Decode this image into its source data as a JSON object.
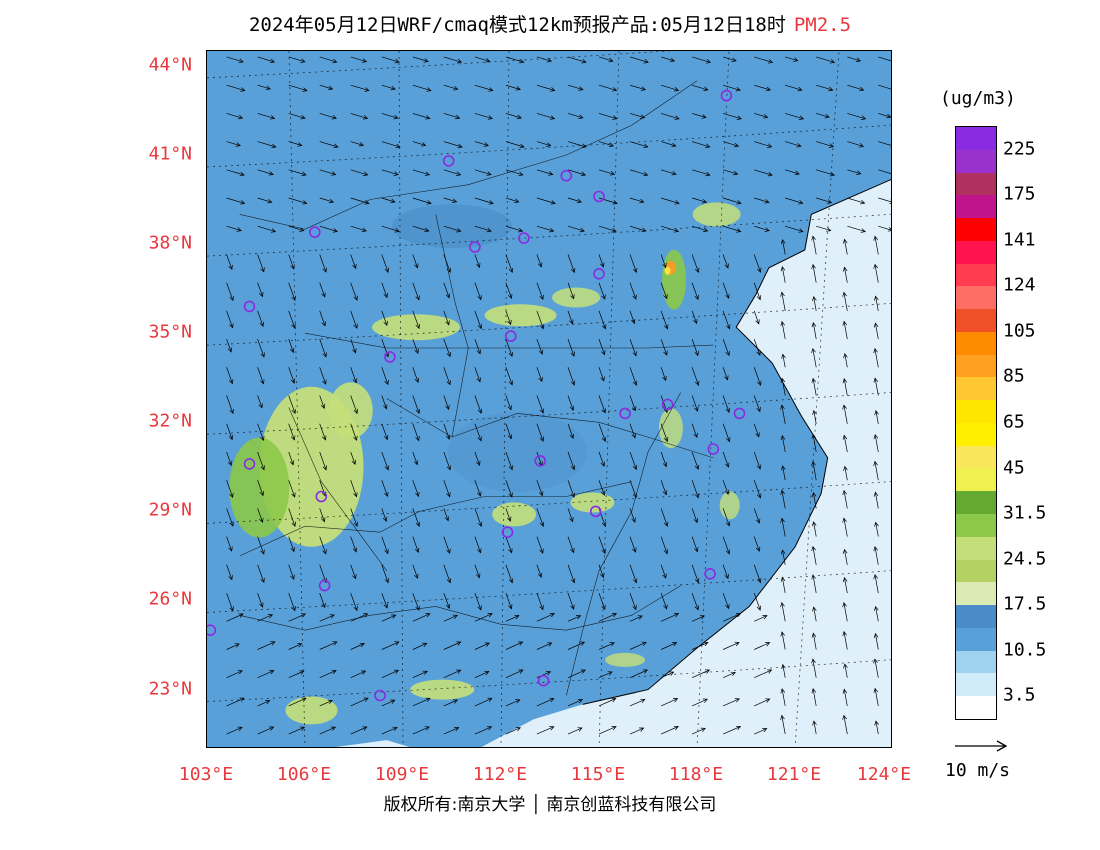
{
  "title": {
    "main": "2024年05月12日WRF/cmaq模式12km预报产品:05月12日18时",
    "variable": "PM2.5"
  },
  "map": {
    "lon_range": [
      103,
      124
    ],
    "lat_range": [
      21,
      44.5
    ],
    "lat_ticks": [
      {
        "value": 44,
        "label": "44°N"
      },
      {
        "value": 41,
        "label": "41°N"
      },
      {
        "value": 38,
        "label": "38°N"
      },
      {
        "value": 35,
        "label": "35°N"
      },
      {
        "value": 32,
        "label": "32°N"
      },
      {
        "value": 29,
        "label": "29°N"
      },
      {
        "value": 26,
        "label": "26°N"
      },
      {
        "value": 23,
        "label": "23°N"
      }
    ],
    "lon_ticks": [
      {
        "value": 103,
        "label": "103°E"
      },
      {
        "value": 106,
        "label": "106°E"
      },
      {
        "value": 109,
        "label": "109°E"
      },
      {
        "value": 112,
        "label": "112°E"
      },
      {
        "value": 115,
        "label": "115°E"
      },
      {
        "value": 118,
        "label": "118°E"
      },
      {
        "value": 121,
        "label": "121°E"
      },
      {
        "value": 124,
        "label": "124°E"
      }
    ],
    "colors": {
      "ocean": "#dff0fa",
      "low": "#5aa0d8",
      "mid": "#4a8cc8",
      "light_green": "#c4df7a",
      "green": "#8cc84a",
      "yellow": "#fbe13a",
      "orange": "#f39c28",
      "city_marker": "#8a2be2"
    }
  },
  "colorbar": {
    "unit": "(ug/m3)",
    "colors": [
      "#8a2be2",
      "#9932cc",
      "#b03060",
      "#c0148c",
      "#ff0000",
      "#ff1450",
      "#ff3c50",
      "#ff6e64",
      "#f05028",
      "#ff8c00",
      "#ffa020",
      "#ffc830",
      "#ffe600",
      "#fff000",
      "#fae65a",
      "#f0f050",
      "#64aa32",
      "#8cc84a",
      "#c4df7a",
      "#b4d264",
      "#dceab4",
      "#4a8cc8",
      "#5aa0d8",
      "#a0d2f0",
      "#d2ebfa",
      "#ffffff"
    ],
    "labels": [
      "225",
      "175",
      "141",
      "124",
      "105",
      "85",
      "65",
      "45",
      "31.5",
      "24.5",
      "17.5",
      "10.5",
      "3.5"
    ]
  },
  "reference_vector": {
    "label": "10 m/s"
  },
  "cities": [
    {
      "lon": 118.9,
      "lat": 43.0
    },
    {
      "lon": 110.4,
      "lat": 40.8
    },
    {
      "lon": 114.0,
      "lat": 40.3
    },
    {
      "lon": 115.0,
      "lat": 39.6
    },
    {
      "lon": 106.3,
      "lat": 38.4
    },
    {
      "lon": 111.2,
      "lat": 37.9
    },
    {
      "lon": 112.7,
      "lat": 38.2
    },
    {
      "lon": 115.0,
      "lat": 37.0
    },
    {
      "lon": 104.3,
      "lat": 35.9
    },
    {
      "lon": 112.3,
      "lat": 34.9
    },
    {
      "lon": 108.6,
      "lat": 34.2
    },
    {
      "lon": 115.8,
      "lat": 32.3
    },
    {
      "lon": 117.1,
      "lat": 32.6
    },
    {
      "lon": 119.3,
      "lat": 32.3
    },
    {
      "lon": 118.5,
      "lat": 31.1
    },
    {
      "lon": 104.3,
      "lat": 30.6
    },
    {
      "lon": 106.5,
      "lat": 29.5
    },
    {
      "lon": 113.2,
      "lat": 30.7
    },
    {
      "lon": 114.9,
      "lat": 29.0
    },
    {
      "lon": 112.2,
      "lat": 28.3
    },
    {
      "lon": 106.6,
      "lat": 26.5
    },
    {
      "lon": 118.4,
      "lat": 26.9
    },
    {
      "lon": 103.1,
      "lat": 25.0
    },
    {
      "lon": 108.3,
      "lat": 22.8
    },
    {
      "lon": 113.3,
      "lat": 23.3
    }
  ],
  "copyright": {
    "left": "版权所有:南京大学",
    "right": "南京创蓝科技有限公司"
  }
}
